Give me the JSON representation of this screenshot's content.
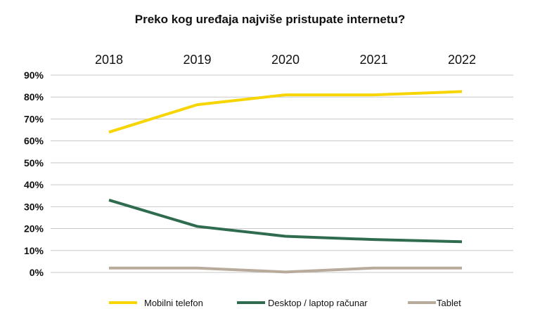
{
  "chart_data": {
    "type": "line",
    "title": "Preko kog uređaja najviše pristupate internetu?",
    "x": [
      "2018",
      "2019",
      "2020",
      "2021",
      "2022"
    ],
    "y_ticks": [
      "0%",
      "10%",
      "20%",
      "30%",
      "40%",
      "50%",
      "60%",
      "70%",
      "80%",
      "90%"
    ],
    "ylim": [
      0,
      90
    ],
    "y_unit": "%",
    "grid": true,
    "x_labels_position": "top",
    "legend_position": "bottom",
    "series": [
      {
        "name": "Mobilni telefon",
        "color": "#f7d500",
        "values": [
          64,
          76.5,
          81,
          81,
          82.5
        ]
      },
      {
        "name": "Desktop / laptop računar",
        "color": "#2f6b4f",
        "values": [
          33,
          21,
          16.5,
          15,
          14
        ]
      },
      {
        "name": "Tablet",
        "color": "#b9ab9c",
        "values": [
          2,
          2,
          0.2,
          2,
          2
        ]
      }
    ]
  }
}
